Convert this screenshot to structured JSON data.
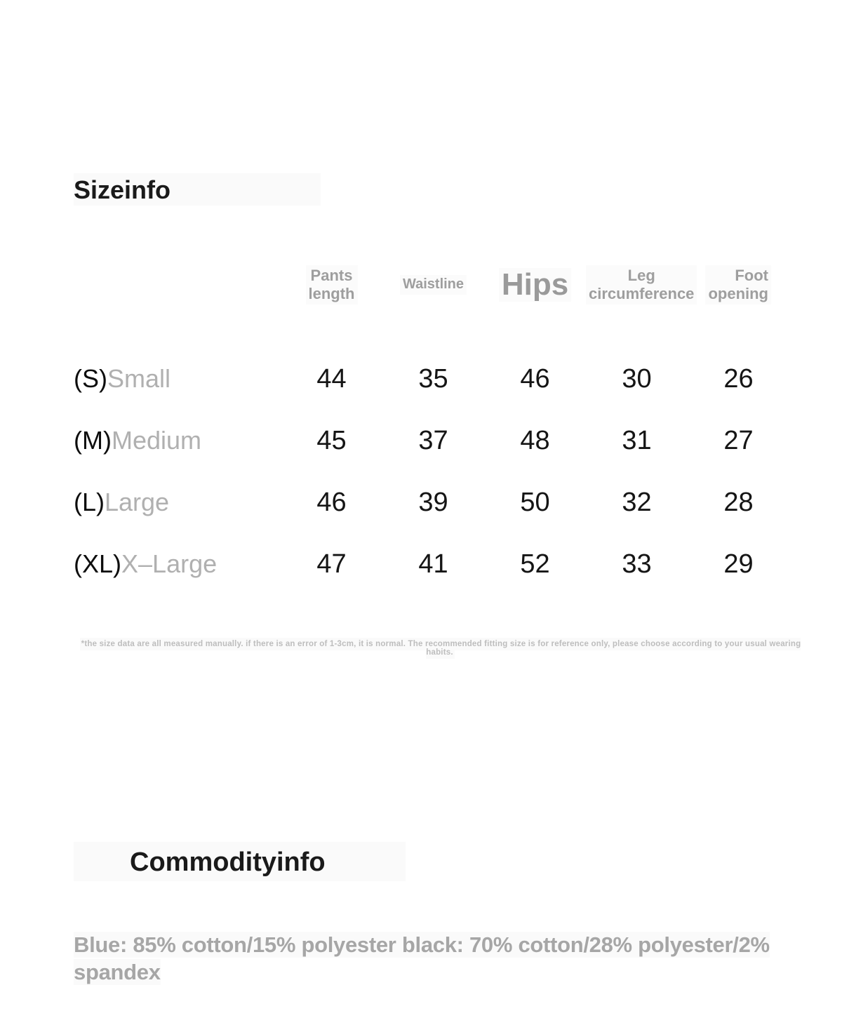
{
  "colors": {
    "page_bg": "#ffffff",
    "heading_text": "#1a1a1a",
    "header_gray": "#9e9e9e",
    "size_code_black": "#0d0d0d",
    "size_name_gray": "#b0b0b0",
    "number_black": "#151515",
    "footnote_gray": "#bdbdbd",
    "description_gray": "#a6a6a6",
    "highlight_patch": "#fafafa"
  },
  "size_section": {
    "title": "Sizeinfo",
    "columns": [
      {
        "label": "Pants\nlength"
      },
      {
        "label": "Waistline"
      },
      {
        "label": "Hips"
      },
      {
        "label": "Leg\ncircumference"
      },
      {
        "label": "Foot\nopening"
      }
    ],
    "rows": [
      {
        "code": "(S)",
        "name": "Small",
        "values": [
          "44",
          "35",
          "46",
          "30",
          "26"
        ]
      },
      {
        "code": "(M)",
        "name": "Medium",
        "values": [
          "45",
          "37",
          "48",
          "31",
          "27"
        ]
      },
      {
        "code": "(L)",
        "name": "Large",
        "values": [
          "46",
          "39",
          "50",
          "32",
          "28"
        ]
      },
      {
        "code": "(XL)",
        "name": "X–Large",
        "values": [
          "47",
          "41",
          "52",
          "33",
          "29"
        ]
      }
    ],
    "footnote": "*the size data are all measured manually. if there is an error of 1-3cm, it is normal. The recommended fitting size is for reference only, please choose according to your usual wearing habits."
  },
  "commodity_section": {
    "title": "Commodityinfo",
    "description": "Blue: 85% cotton/15% polyester black: 70% cotton/28% polyester/2% spandex"
  }
}
